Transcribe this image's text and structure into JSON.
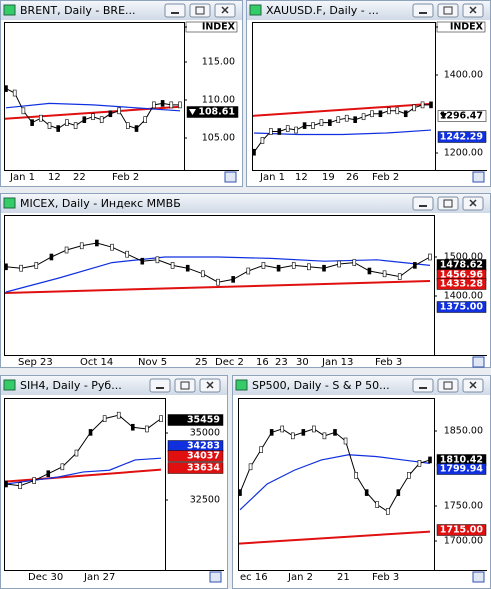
{
  "windows": [
    {
      "title": "BRENT, Daily - BRE...",
      "axis_labels": [
        "INDEX",
        "115.00",
        "110.00",
        "105.00"
      ],
      "price_tags": [
        "108.61"
      ],
      "dates": [
        "Jan 1",
        "12",
        "22",
        "Feb 2"
      ]
    },
    {
      "title": "XAUUSD.F, Daily - ...",
      "axis_labels": [
        "INDEX",
        "1400.00",
        "1200.00"
      ],
      "price_tags": [
        "1296.47",
        "1242.29"
      ],
      "dates": [
        "Jan 1",
        "12",
        "19",
        "26",
        "Feb 2"
      ]
    },
    {
      "title": "MICEX, Daily - Индекс ММВБ",
      "axis_labels": [
        "1500.00",
        "1400.00"
      ],
      "price_tags": [
        "1478.62",
        "1456.96",
        "1433.28",
        "1375.00"
      ],
      "dates": [
        "Sep 23",
        "Oct 14",
        "Nov 5",
        "25",
        "Dec 2",
        "16",
        "23",
        "30",
        "Jan 13",
        "Feb 3"
      ]
    },
    {
      "title": "SIH4, Daily - Руб...",
      "axis_labels": [
        "35000",
        "32500"
      ],
      "price_tags": [
        "35459",
        "34283",
        "34037",
        "33634"
      ],
      "dates": [
        "Dec 30",
        "Jan 27"
      ]
    },
    {
      "title": "SP500, Daily - S & P 50...",
      "axis_labels": [
        "1850.00",
        "1750.00",
        "1700.00"
      ],
      "price_tags": [
        "1810.42",
        "1799.94",
        "1715.00"
      ],
      "dates": [
        "ec 16",
        "Jan 2",
        "21",
        "Feb 3"
      ]
    }
  ]
}
